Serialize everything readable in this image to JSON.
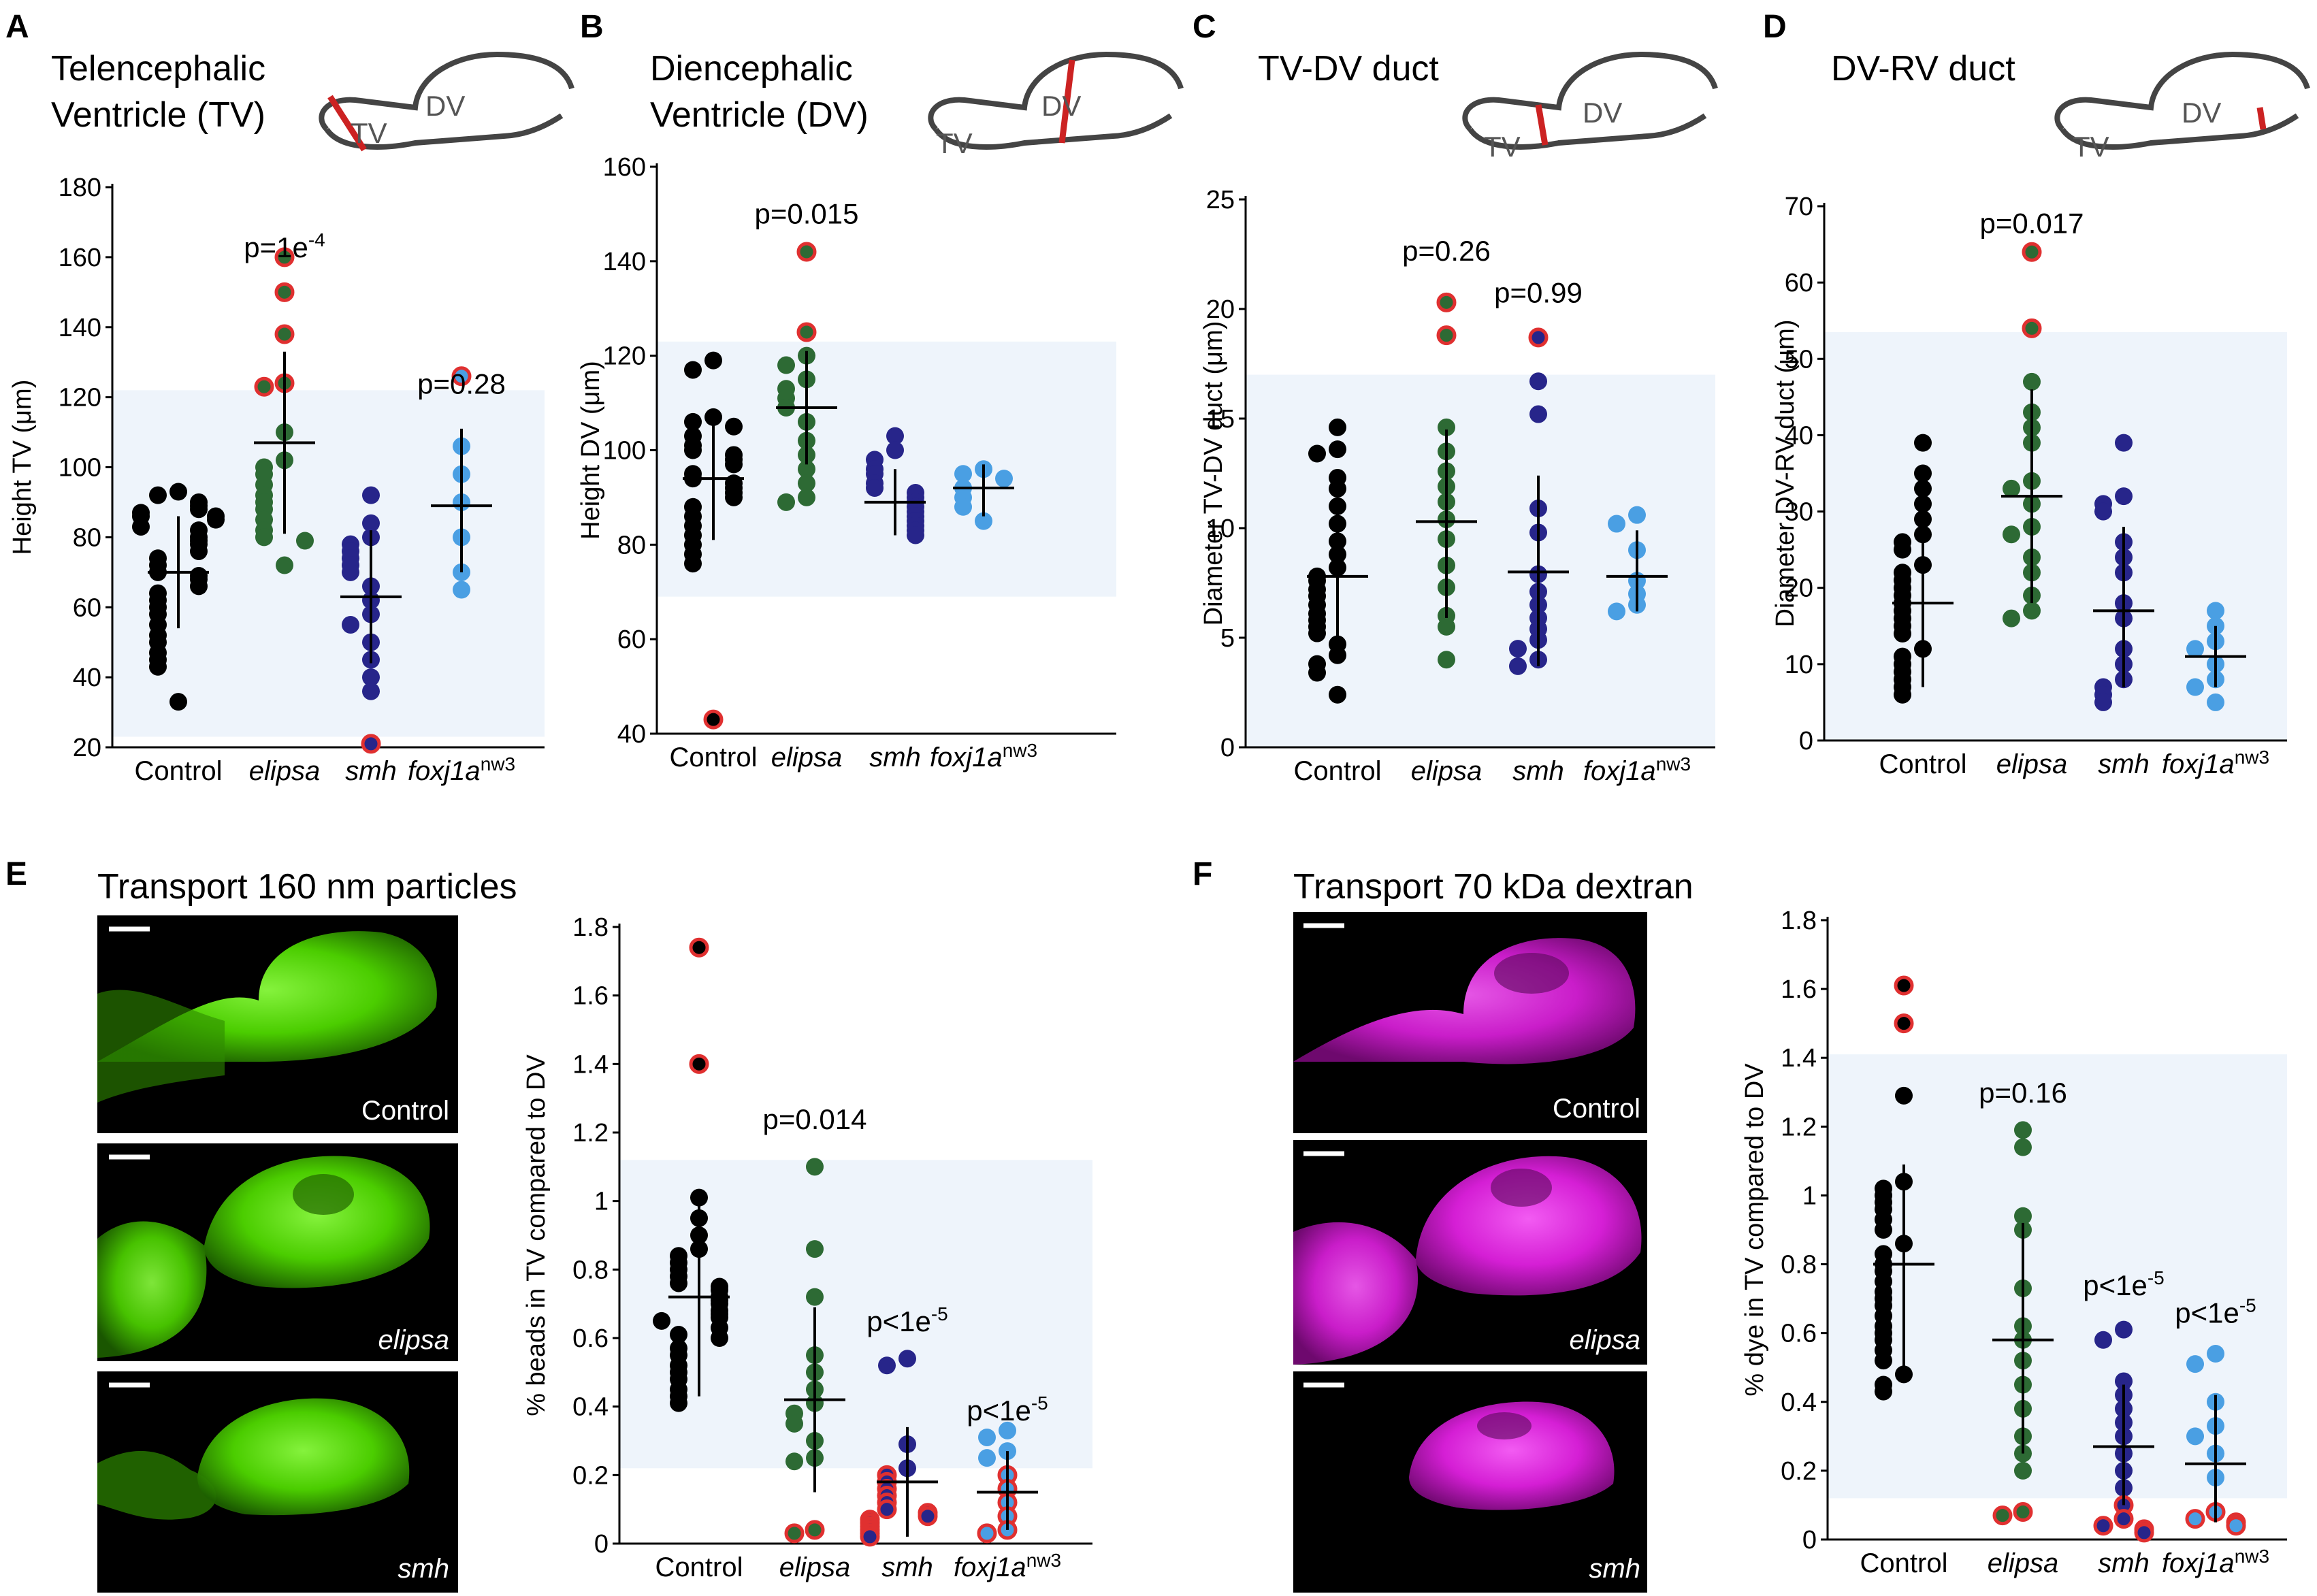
{
  "colors": {
    "control": "#000000",
    "elipsa": "#2d6a34",
    "smh": "#27258a",
    "foxj1a": "#4a9fe3",
    "outlier_ring": "#e03030",
    "band": "#eef4fb",
    "red_line": "#cc2222",
    "green_image": "#4fd800",
    "magenta_image": "#e020e0"
  },
  "panels": {
    "A": {
      "letter": "A",
      "title_line1": "Telencephalic",
      "title_line2": "Ventricle (TV)",
      "schematic_tv": "TV",
      "schematic_dv": "DV"
    },
    "B": {
      "letter": "B",
      "title_line1": "Diencephalic",
      "title_line2": "Ventricle (DV)",
      "schematic_tv": "TV",
      "schematic_dv": "DV"
    },
    "C": {
      "letter": "C",
      "title_line1": "TV-DV duct",
      "schematic_tv": "TV",
      "schematic_dv": "DV"
    },
    "D": {
      "letter": "D",
      "title_line1": "DV-RV duct",
      "schematic_tv": "TV",
      "schematic_dv": "DV"
    },
    "E": {
      "letter": "E",
      "title_line1": "Transport 160 nm particles",
      "img_labels": [
        "Control",
        "elipsa",
        "smh"
      ]
    },
    "F": {
      "letter": "F",
      "title_line1": "Transport 70 kDa dextran",
      "img_labels": [
        "Control",
        "elipsa",
        "smh"
      ]
    }
  },
  "categories": {
    "control": "Control",
    "elipsa": "elipsa",
    "smh": "smh",
    "foxj1a": "foxj1a",
    "foxj1a_sup": "nw3"
  },
  "chart_data": [
    {
      "id": "A",
      "type": "scatter",
      "ylabel": "Height TV (μm)",
      "ylim": [
        20,
        180
      ],
      "yticks": [
        20,
        40,
        60,
        80,
        100,
        120,
        140,
        160,
        180
      ],
      "band": [
        23,
        122
      ],
      "pvalues": [
        {
          "group": 1,
          "base": "p=1e",
          "sup": "-4",
          "y": 160
        },
        {
          "group": 3,
          "text": "p=0.28",
          "y": 121
        }
      ],
      "groups": [
        {
          "key": "control",
          "mean": 70,
          "sd": [
            54,
            86
          ],
          "points": [
            93,
            92,
            90,
            89,
            88,
            87,
            86,
            86,
            85,
            83,
            82,
            80,
            79,
            78,
            76,
            74,
            72,
            70,
            69,
            68,
            66,
            64,
            62,
            60,
            58,
            55,
            52,
            50,
            47,
            45,
            43,
            33
          ],
          "outliers": []
        },
        {
          "key": "elipsa",
          "mean": 107,
          "sd": [
            81,
            133
          ],
          "points": [
            110,
            102,
            100,
            98,
            95,
            92,
            90,
            88,
            85,
            82,
            80,
            79,
            72
          ],
          "outliers": [
            160,
            150,
            138,
            124,
            123
          ]
        },
        {
          "key": "smh",
          "mean": 63,
          "sd": [
            44,
            82
          ],
          "points": [
            92,
            84,
            80,
            78,
            76,
            74,
            72,
            70,
            66,
            62,
            58,
            55,
            50,
            45,
            40,
            36
          ],
          "outliers": [
            21
          ]
        },
        {
          "key": "foxj1a",
          "mean": 89,
          "sd": [
            70,
            111
          ],
          "points": [
            106,
            98,
            90,
            80,
            70,
            65
          ],
          "outliers": [
            126
          ]
        }
      ]
    },
    {
      "id": "B",
      "type": "scatter",
      "ylabel": "Height DV (μm)",
      "ylim": [
        40,
        160
      ],
      "yticks": [
        40,
        60,
        80,
        100,
        120,
        140,
        160
      ],
      "band": [
        69,
        123
      ],
      "pvalues": [
        {
          "group": 1,
          "text": "p=0.015",
          "y": 148
        }
      ],
      "groups": [
        {
          "key": "control",
          "mean": 94,
          "sd": [
            81,
            108
          ],
          "points": [
            119,
            117,
            107,
            106,
            105,
            103,
            101,
            100,
            99,
            98,
            97,
            95,
            94,
            93,
            92,
            91,
            90,
            88,
            86,
            84,
            82,
            80,
            78,
            76
          ],
          "outliers": [
            43
          ]
        },
        {
          "key": "elipsa",
          "mean": 109,
          "sd": [
            97,
            121
          ],
          "points": [
            120,
            118,
            115,
            113,
            111,
            109,
            106,
            102,
            99,
            96,
            93,
            90,
            89
          ],
          "outliers": [
            142,
            125
          ]
        },
        {
          "key": "smh",
          "mean": 89,
          "sd": [
            82,
            96
          ],
          "points": [
            103,
            100,
            98,
            96,
            95,
            93,
            92,
            91,
            90,
            89,
            88,
            87,
            86,
            85,
            84,
            83,
            82
          ],
          "outliers": []
        },
        {
          "key": "foxj1a",
          "mean": 92,
          "sd": [
            86,
            97
          ],
          "points": [
            96,
            95,
            94,
            92,
            90,
            88,
            85
          ],
          "outliers": []
        }
      ]
    },
    {
      "id": "C",
      "type": "scatter",
      "ylabel": "Diameter TV-DV duct (μm)",
      "ylim": [
        0,
        25
      ],
      "yticks": [
        0,
        5,
        10,
        15,
        20,
        25
      ],
      "band": [
        0,
        17
      ],
      "pvalues": [
        {
          "group": 1,
          "text": "p=0.26",
          "y": 22.2
        },
        {
          "group": 2,
          "text": "p=0.99",
          "y": 20.3
        }
      ],
      "groups": [
        {
          "key": "control",
          "mean": 7.8,
          "sd": [
            4.5,
            11.1
          ],
          "points": [
            14.6,
            13.6,
            13.4,
            12.3,
            11.8,
            11.0,
            10.2,
            9.4,
            8.8,
            8.2,
            7.8,
            7.6,
            7.2,
            6.9,
            6.5,
            6.1,
            5.8,
            5.5,
            5.2,
            4.7,
            4.2,
            3.8,
            3.4,
            2.4
          ],
          "outliers": []
        },
        {
          "key": "elipsa",
          "mean": 10.3,
          "sd": [
            5.9,
            14.5
          ],
          "points": [
            14.6,
            13.5,
            12.6,
            11.9,
            11.2,
            10.4,
            9.5,
            8.3,
            7.3,
            6.0,
            5.5,
            4.0
          ],
          "outliers": [
            20.3,
            18.8
          ]
        },
        {
          "key": "smh",
          "mean": 8.0,
          "sd": [
            3.7,
            12.4
          ],
          "points": [
            16.7,
            15.2,
            10.9,
            9.8,
            7.9,
            7.1,
            6.5,
            5.9,
            5.4,
            4.9,
            4.5,
            4.0,
            3.7
          ],
          "outliers": [
            18.7
          ]
        },
        {
          "key": "foxj1a",
          "mean": 7.8,
          "sd": [
            6.2,
            9.9
          ],
          "points": [
            10.6,
            10.2,
            9.0,
            7.6,
            7.0,
            6.5,
            6.2
          ],
          "outliers": []
        }
      ]
    },
    {
      "id": "D",
      "type": "scatter",
      "ylabel": "Diameter DV-RV duct (μm)",
      "ylim": [
        0,
        70
      ],
      "yticks": [
        0,
        10,
        20,
        30,
        40,
        50,
        60,
        70
      ],
      "band": [
        0,
        53.5
      ],
      "pvalues": [
        {
          "group": 1,
          "text": "p=0.017",
          "y": 66.5
        }
      ],
      "groups": [
        {
          "key": "control",
          "mean": 18,
          "sd": [
            7,
            29
          ],
          "points": [
            39,
            35,
            33,
            31,
            29,
            27,
            26,
            25,
            23,
            22,
            21,
            20,
            19,
            18,
            17,
            16,
            15,
            14,
            12,
            11,
            10,
            9,
            8,
            7,
            6
          ],
          "outliers": []
        },
        {
          "key": "elipsa",
          "mean": 32,
          "sd": [
            18,
            46
          ],
          "points": [
            47,
            43,
            41,
            39,
            34,
            33,
            31,
            28,
            27,
            24,
            22,
            19,
            17,
            16
          ],
          "outliers": [
            64,
            54
          ]
        },
        {
          "key": "smh",
          "mean": 17,
          "sd": [
            7,
            28
          ],
          "points": [
            39,
            32,
            31,
            30,
            26,
            24,
            22,
            18,
            16,
            12,
            10,
            8,
            7,
            6,
            5
          ],
          "outliers": []
        },
        {
          "key": "foxj1a",
          "mean": 11,
          "sd": [
            7,
            15
          ],
          "points": [
            17,
            15,
            13,
            12,
            10,
            8,
            7,
            5
          ],
          "outliers": []
        }
      ]
    },
    {
      "id": "E",
      "type": "scatter",
      "ylabel": "% beads in TV compared to DV",
      "ylim": [
        0,
        1.8
      ],
      "yticks": [
        0,
        0.2,
        0.4,
        0.6,
        0.8,
        1,
        1.2,
        1.4,
        1.6,
        1.8
      ],
      "band": [
        0.22,
        1.12
      ],
      "pvalues": [
        {
          "group": 1,
          "text": "p=0.014",
          "y": 1.21
        },
        {
          "group": 2,
          "base": "p<1e",
          "sup": "-5",
          "y": 0.62
        },
        {
          "group": 3,
          "base": "p<1e",
          "sup": "-5",
          "y": 0.36
        }
      ],
      "groups": [
        {
          "key": "control",
          "mean": 0.72,
          "sd": [
            0.43,
            1.0
          ],
          "points": [
            1.01,
            0.95,
            0.9,
            0.86,
            0.84,
            0.82,
            0.8,
            0.78,
            0.76,
            0.75,
            0.74,
            0.72,
            0.71,
            0.7,
            0.68,
            0.67,
            0.66,
            0.65,
            0.63,
            0.61,
            0.6,
            0.57,
            0.55,
            0.52,
            0.5,
            0.48,
            0.45,
            0.43,
            0.41
          ],
          "outliers": [
            1.74,
            1.4
          ]
        },
        {
          "key": "elipsa",
          "mean": 0.42,
          "sd": [
            0.15,
            0.69
          ],
          "points": [
            1.1,
            0.86,
            0.72,
            0.55,
            0.5,
            0.45,
            0.41,
            0.38,
            0.35,
            0.3,
            0.25,
            0.24
          ],
          "outliers": [
            0.04,
            0.03
          ]
        },
        {
          "key": "smh",
          "mean": 0.18,
          "sd": [
            0.02,
            0.34
          ],
          "points": [
            0.54,
            0.52,
            0.29,
            0.22
          ],
          "outliers": [
            0.2,
            0.18,
            0.16,
            0.14,
            0.12,
            0.1,
            0.09,
            0.08,
            0.07,
            0.06,
            0.05,
            0.04,
            0.03,
            0.02
          ]
        },
        {
          "key": "foxj1a",
          "mean": 0.15,
          "sd": [
            0.04,
            0.27
          ],
          "points": [
            0.33,
            0.31,
            0.27,
            0.25
          ],
          "outliers": [
            0.2,
            0.16,
            0.12,
            0.08,
            0.04,
            0.03
          ]
        }
      ]
    },
    {
      "id": "F",
      "type": "scatter",
      "ylabel": "% dye in TV compared to DV",
      "ylim": [
        0,
        1.8
      ],
      "yticks": [
        0,
        0.2,
        0.4,
        0.6,
        0.8,
        1,
        1.2,
        1.4,
        1.6,
        1.8
      ],
      "band": [
        0.12,
        1.41
      ],
      "pvalues": [
        {
          "group": 1,
          "text": "p=0.16",
          "y": 1.27
        },
        {
          "group": 2,
          "base": "p<1e",
          "sup": "-5",
          "y": 0.71
        },
        {
          "group": 3,
          "base": "p<1e",
          "sup": "-5",
          "y": 0.63
        }
      ],
      "groups": [
        {
          "key": "control",
          "mean": 0.8,
          "sd": [
            0.5,
            1.09
          ],
          "points": [
            1.29,
            1.04,
            1.02,
            1.0,
            0.98,
            0.96,
            0.93,
            0.9,
            0.86,
            0.83,
            0.8,
            0.78,
            0.75,
            0.72,
            0.7,
            0.68,
            0.65,
            0.62,
            0.6,
            0.58,
            0.55,
            0.52,
            0.48,
            0.45,
            0.43
          ],
          "outliers": [
            1.61,
            1.5
          ]
        },
        {
          "key": "elipsa",
          "mean": 0.58,
          "sd": [
            0.25,
            0.92
          ],
          "points": [
            1.19,
            1.14,
            0.94,
            0.9,
            0.73,
            0.62,
            0.58,
            0.52,
            0.45,
            0.38,
            0.3,
            0.25,
            0.2
          ],
          "outliers": [
            0.08,
            0.07
          ]
        },
        {
          "key": "smh",
          "mean": 0.27,
          "sd": [
            0.1,
            0.45
          ],
          "points": [
            0.61,
            0.58,
            0.46,
            0.42,
            0.38,
            0.34,
            0.3,
            0.25,
            0.2,
            0.15
          ],
          "outliers": [
            0.1,
            0.06,
            0.04,
            0.03,
            0.02
          ]
        },
        {
          "key": "foxj1a",
          "mean": 0.22,
          "sd": [
            0.05,
            0.42
          ],
          "points": [
            0.54,
            0.51,
            0.4,
            0.33,
            0.3,
            0.25,
            0.18
          ],
          "outliers": [
            0.08,
            0.06,
            0.05,
            0.04
          ]
        }
      ]
    }
  ]
}
